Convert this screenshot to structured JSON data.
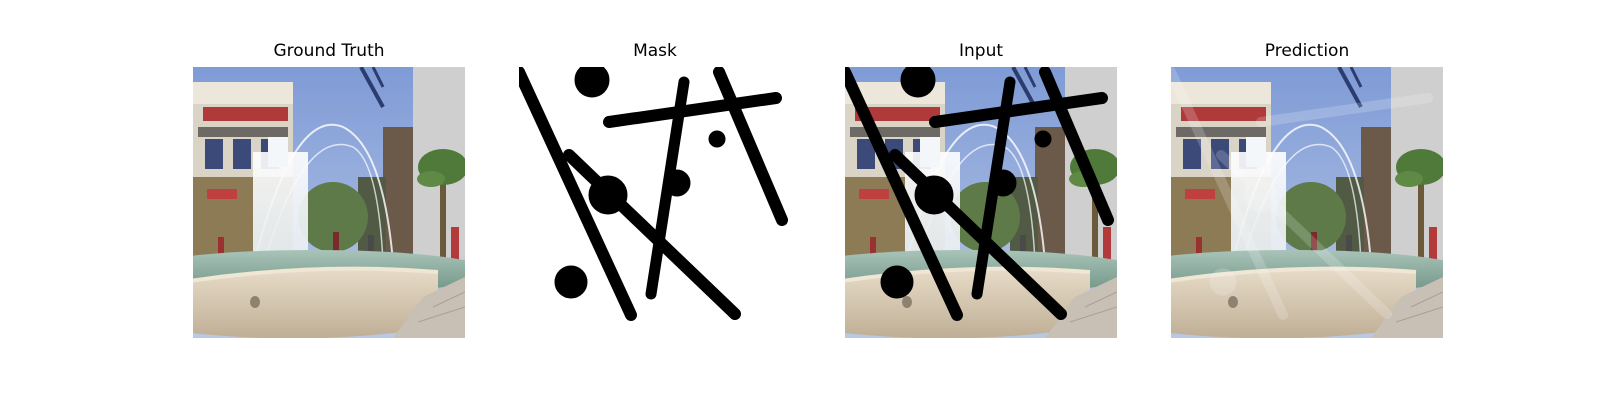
{
  "figure": {
    "panels": [
      {
        "id": "ground-truth",
        "title": "Ground Truth"
      },
      {
        "id": "mask",
        "title": "Mask"
      },
      {
        "id": "input",
        "title": "Input"
      },
      {
        "id": "prediction",
        "title": "Prediction"
      }
    ]
  },
  "colors": {
    "sky": "#8aa3d6",
    "mask_stroke": "#000000",
    "water": "#8fb0a3",
    "basin": "#d8cbb6"
  }
}
